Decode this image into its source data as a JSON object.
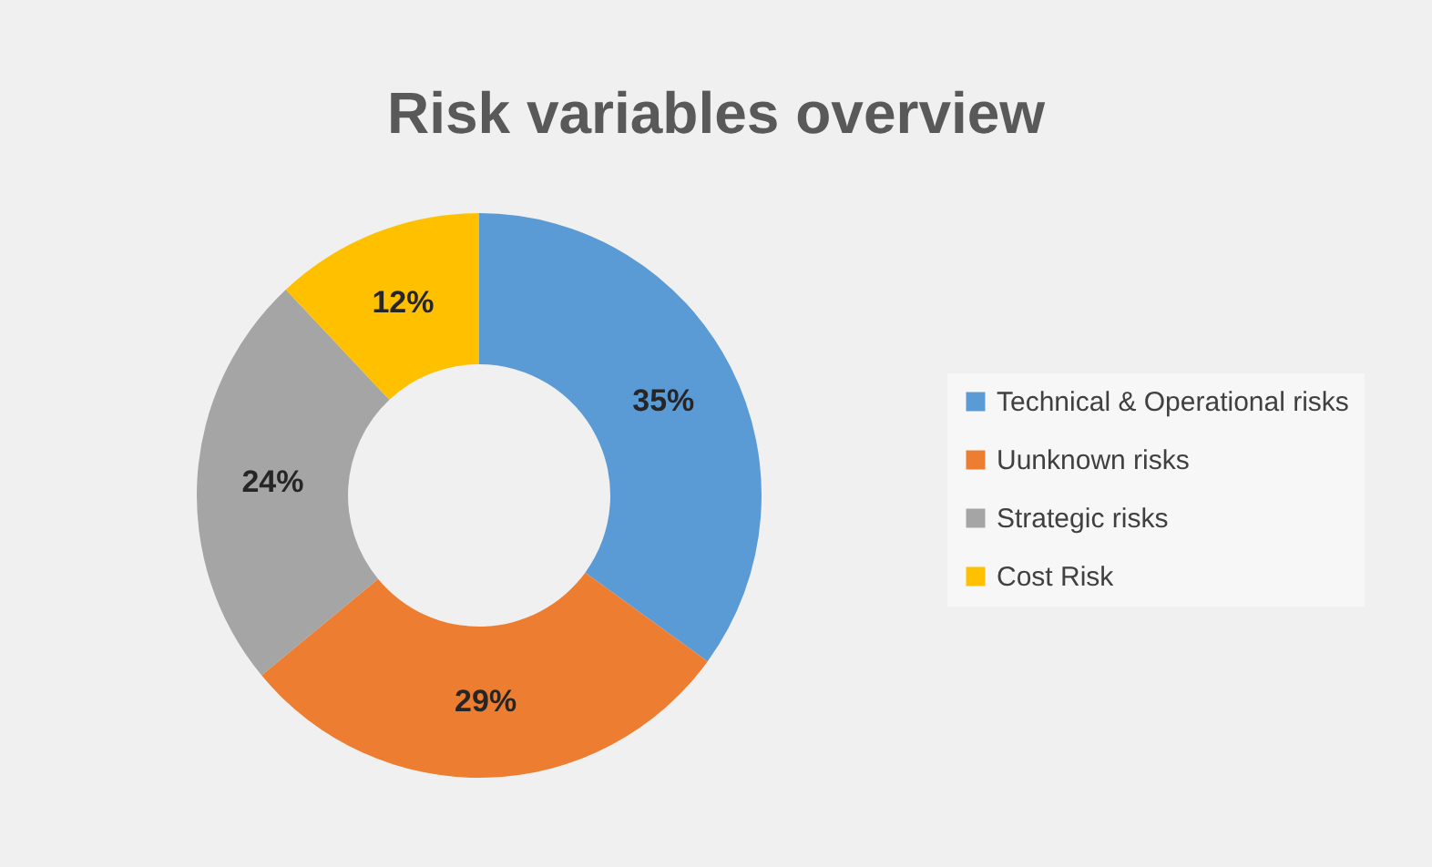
{
  "chart_data": {
    "type": "donut",
    "title": "Risk variables overview",
    "categories": [
      "Technical & Operational risks",
      "Uunknown risks",
      "Strategic risks",
      "Cost Risk"
    ],
    "values": [
      35,
      29,
      24,
      12
    ],
    "colors": [
      "#5b9bd5",
      "#ed7d31",
      "#a5a5a5",
      "#ffc000"
    ],
    "value_labels": [
      "35%",
      "29%",
      "24%",
      "12%"
    ],
    "legend": "right"
  }
}
